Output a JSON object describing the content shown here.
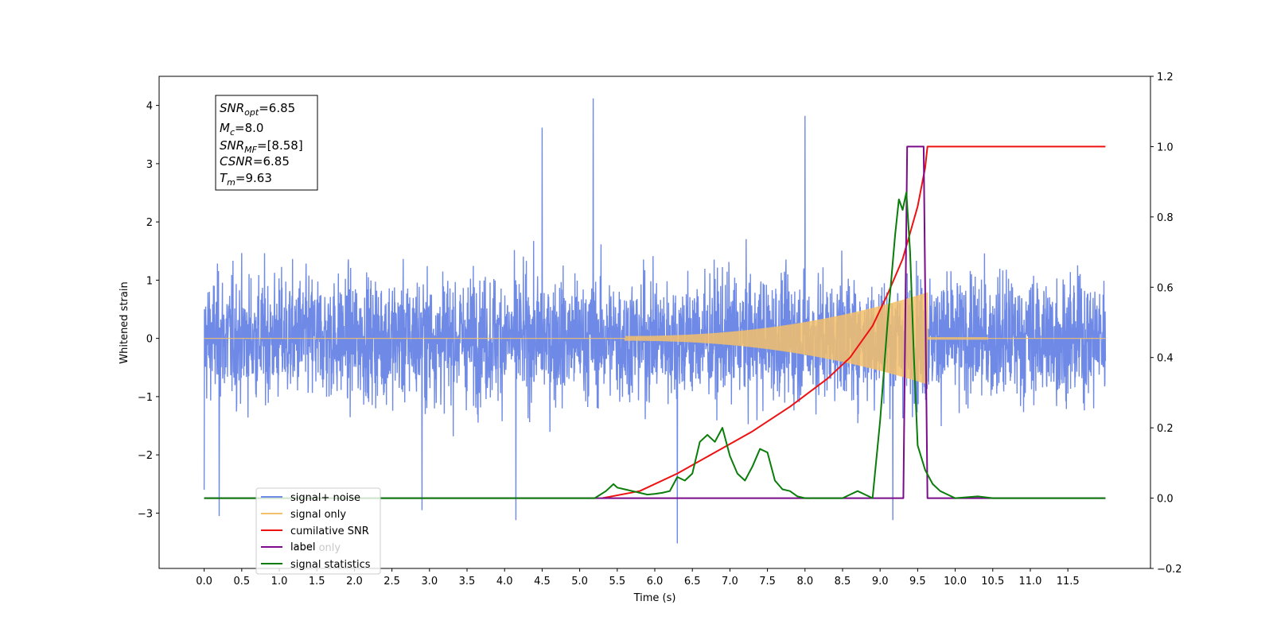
{
  "chart_data": {
    "type": "line",
    "xlabel": "Time (s)",
    "ylabel": "Whitened strain",
    "xlim": [
      -0.6,
      12.6
    ],
    "ylim_left": [
      -3.95,
      4.5
    ],
    "ylim_right": [
      -0.2,
      1.2
    ],
    "x_ticks": [
      "0.0",
      "0.5",
      "1.0",
      "1.5",
      "2.0",
      "2.5",
      "3.0",
      "3.5",
      "4.0",
      "4.5",
      "5.0",
      "5.5",
      "6.0",
      "6.5",
      "7.0",
      "7.5",
      "8.0",
      "8.5",
      "9.0",
      "9.5",
      "10.0",
      "10.5",
      "11.0",
      "11.5"
    ],
    "y_ticks_left": [
      "4",
      "3",
      "2",
      "1",
      "0",
      "−1",
      "−2",
      "−3"
    ],
    "y_ticks_right": [
      "1.2",
      "1.0",
      "0.8",
      "0.6",
      "0.4",
      "0.2",
      "0.0",
      "−0.2"
    ],
    "annotation": {
      "snr_opt": {
        "base": "SNR",
        "sub": "opt",
        "value": "=6.85"
      },
      "mc": {
        "base": "M",
        "sub": "c",
        "value": "=8.0"
      },
      "snr_mf": {
        "base": "SNR",
        "sub": "MF",
        "value": "=[8.58]"
      },
      "csnr": {
        "base": "CSNR",
        "value": "=6.85"
      },
      "tm": {
        "base": "T",
        "sub": "m",
        "value": "=9.63"
      }
    },
    "legend_position": "lower-left",
    "series": [
      {
        "name": "signal+ noise",
        "axis": "left",
        "color": "#6f8ae6",
        "x_range": [
          0.0,
          12.0
        ],
        "envelope_typical": 2.2,
        "notable_peaks": [
          {
            "x": 5.18,
            "y": 4.12
          },
          {
            "x": 8.0,
            "y": 3.82
          },
          {
            "x": 4.5,
            "y": 3.62
          },
          {
            "x": 6.3,
            "y": -3.52
          },
          {
            "x": 9.17,
            "y": -3.12
          },
          {
            "x": 0.2,
            "y": -3.05
          },
          {
            "x": 4.15,
            "y": -3.12
          },
          {
            "x": 2.9,
            "y": -2.95
          },
          {
            "x": 0.0,
            "y": -2.6
          }
        ]
      },
      {
        "name": "signal only",
        "axis": "left",
        "color": "#f5c06a",
        "chirp": {
          "start": 5.6,
          "merger": 9.63,
          "amp_at_merger": 0.75
        }
      },
      {
        "name": "cumilative SNR",
        "axis": "right",
        "color": "#ee1111",
        "x": [
          5.3,
          5.8,
          6.3,
          6.8,
          7.3,
          7.8,
          8.3,
          8.6,
          8.9,
          9.1,
          9.3,
          9.5,
          9.6,
          9.63,
          12.0
        ],
        "y": [
          0.0,
          0.02,
          0.07,
          0.13,
          0.19,
          0.26,
          0.34,
          0.4,
          0.49,
          0.58,
          0.68,
          0.83,
          0.94,
          1.0,
          1.0
        ]
      },
      {
        "name": "label",
        "axis": "right",
        "color": "#7b0b8b",
        "x": [
          0.0,
          9.31,
          9.36,
          9.58,
          9.63,
          12.0
        ],
        "y": [
          0.0,
          0.0,
          1.0,
          1.0,
          0.0,
          0.0
        ]
      },
      {
        "name": "signal statistics",
        "axis": "right",
        "color": "#0a7d0a",
        "x": [
          0.0,
          5.2,
          5.35,
          5.45,
          5.5,
          5.6,
          5.7,
          5.8,
          5.9,
          6.0,
          6.1,
          6.2,
          6.3,
          6.4,
          6.5,
          6.6,
          6.7,
          6.8,
          6.9,
          7.0,
          7.1,
          7.2,
          7.3,
          7.4,
          7.5,
          7.6,
          7.7,
          7.8,
          7.9,
          8.0,
          8.5,
          8.6,
          8.7,
          8.8,
          8.9,
          9.0,
          9.1,
          9.2,
          9.25,
          9.3,
          9.35,
          9.4,
          9.45,
          9.5,
          9.6,
          9.7,
          9.8,
          9.9,
          10.0,
          10.3,
          10.5,
          12.0
        ],
        "y": [
          0.0,
          0.0,
          0.02,
          0.04,
          0.03,
          0.025,
          0.02,
          0.015,
          0.01,
          0.012,
          0.015,
          0.02,
          0.06,
          0.05,
          0.07,
          0.16,
          0.18,
          0.16,
          0.2,
          0.12,
          0.07,
          0.05,
          0.09,
          0.14,
          0.13,
          0.05,
          0.025,
          0.02,
          0.005,
          0.0,
          0.0,
          0.01,
          0.02,
          0.01,
          0.0,
          0.22,
          0.5,
          0.75,
          0.85,
          0.82,
          0.87,
          0.7,
          0.4,
          0.15,
          0.08,
          0.04,
          0.02,
          0.01,
          0.0,
          0.005,
          0.0,
          0.0
        ]
      }
    ],
    "legend_label_overlap": "label only"
  }
}
